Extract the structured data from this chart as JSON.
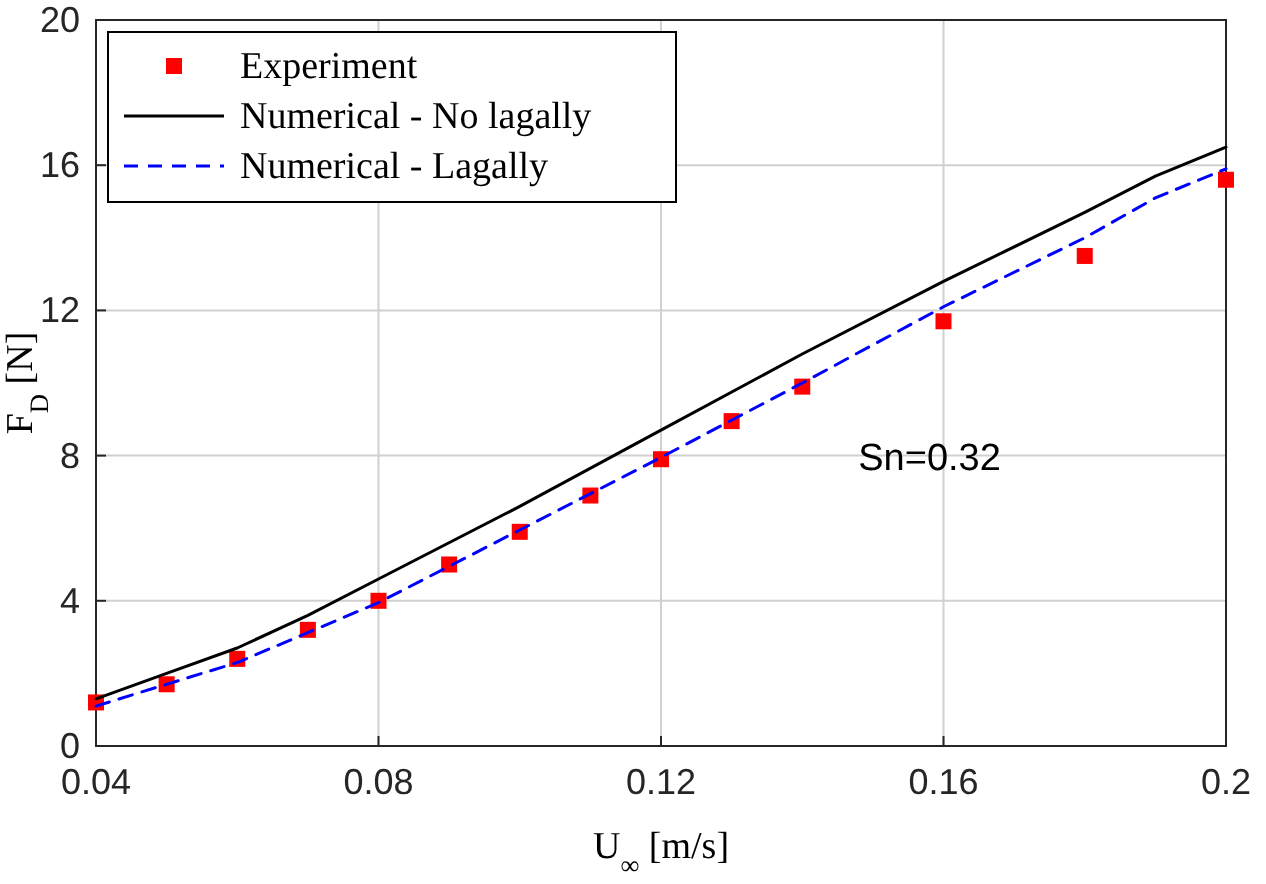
{
  "chart_data": {
    "type": "line",
    "xlabel": "U$_{∞}$ [m/s]",
    "ylabel": "F$_{D}$ [N]",
    "xlim": [
      0.04,
      0.2
    ],
    "xticks": [
      0.04,
      0.08,
      0.12,
      0.16,
      0.2
    ],
    "ylim": [
      0,
      20
    ],
    "yticks": [
      0,
      4,
      8,
      12,
      16,
      20
    ],
    "grid": true,
    "legend": "top left",
    "annotations": [
      "Sn=0.32"
    ],
    "series": [
      {
        "name": "Experiment",
        "type": "scatter",
        "marker": "square",
        "color": "#ff0000",
        "x": [
          0.04,
          0.05,
          0.06,
          0.07,
          0.08,
          0.09,
          0.1,
          0.11,
          0.12,
          0.13,
          0.14,
          0.16,
          0.18,
          0.2
        ],
        "values": [
          1.2,
          1.7,
          2.4,
          3.2,
          4.0,
          5.0,
          5.9,
          6.9,
          7.9,
          8.95,
          9.9,
          11.7,
          13.5,
          15.6
        ]
      },
      {
        "name": "Numerical - No lagally",
        "type": "line",
        "line_style": "solid",
        "color": "#000000",
        "x": [
          0.04,
          0.05,
          0.06,
          0.07,
          0.08,
          0.1,
          0.12,
          0.14,
          0.16,
          0.18,
          0.19,
          0.2
        ],
        "values": [
          1.3,
          2.0,
          2.7,
          3.6,
          4.6,
          6.6,
          8.7,
          10.8,
          12.8,
          14.7,
          15.7,
          16.5
        ]
      },
      {
        "name": "Numerical - Lagally",
        "type": "line",
        "line_style": "dashed",
        "color": "#0000ff",
        "x": [
          0.04,
          0.06,
          0.08,
          0.1,
          0.12,
          0.14,
          0.16,
          0.18,
          0.19,
          0.2
        ],
        "values": [
          1.1,
          2.3,
          3.95,
          5.95,
          7.95,
          10.0,
          12.1,
          14.0,
          15.1,
          15.9
        ]
      }
    ]
  }
}
